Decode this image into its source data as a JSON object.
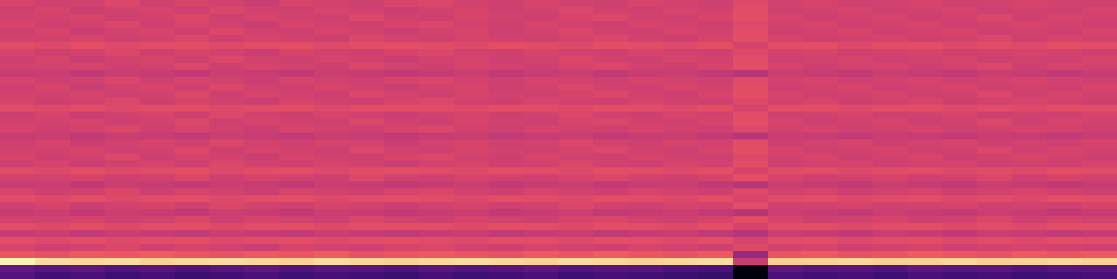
{
  "chart_data": {
    "type": "heatmap",
    "color": "magma",
    "color_range": [
      0,
      1
    ],
    "tick_labels": false,
    "cells": [
      [
        0.58,
        0.56,
        0.57,
        0.59,
        0.56,
        0.58,
        0.57,
        0.55,
        0.58,
        0.57,
        0.56,
        0.58,
        0.59,
        0.57,
        0.56,
        0.58,
        0.57,
        0.56,
        0.58,
        0.57,
        0.56,
        0.6,
        0.57,
        0.58,
        0.56,
        0.57,
        0.58,
        0.56,
        0.57,
        0.58,
        0.57,
        0.56
      ],
      [
        0.56,
        0.58,
        0.55,
        0.57,
        0.58,
        0.56,
        0.59,
        0.57,
        0.56,
        0.58,
        0.57,
        0.55,
        0.57,
        0.58,
        0.56,
        0.57,
        0.59,
        0.57,
        0.56,
        0.58,
        0.57,
        0.61,
        0.56,
        0.57,
        0.58,
        0.56,
        0.57,
        0.58,
        0.56,
        0.57,
        0.56,
        0.58
      ],
      [
        0.57,
        0.57,
        0.58,
        0.56,
        0.57,
        0.59,
        0.56,
        0.58,
        0.57,
        0.56,
        0.59,
        0.57,
        0.56,
        0.58,
        0.57,
        0.56,
        0.58,
        0.59,
        0.57,
        0.56,
        0.58,
        0.62,
        0.58,
        0.56,
        0.57,
        0.58,
        0.56,
        0.57,
        0.59,
        0.56,
        0.58,
        0.57
      ],
      [
        0.58,
        0.56,
        0.57,
        0.59,
        0.56,
        0.58,
        0.57,
        0.55,
        0.58,
        0.57,
        0.56,
        0.58,
        0.59,
        0.57,
        0.56,
        0.58,
        0.57,
        0.56,
        0.58,
        0.57,
        0.56,
        0.6,
        0.57,
        0.58,
        0.56,
        0.57,
        0.58,
        0.56,
        0.57,
        0.58,
        0.57,
        0.56
      ],
      [
        0.56,
        0.58,
        0.55,
        0.57,
        0.58,
        0.56,
        0.59,
        0.57,
        0.56,
        0.58,
        0.57,
        0.55,
        0.57,
        0.58,
        0.56,
        0.57,
        0.59,
        0.57,
        0.56,
        0.58,
        0.57,
        0.61,
        0.56,
        0.57,
        0.58,
        0.56,
        0.57,
        0.58,
        0.56,
        0.57,
        0.56,
        0.58
      ],
      [
        0.57,
        0.57,
        0.58,
        0.56,
        0.57,
        0.59,
        0.56,
        0.58,
        0.57,
        0.56,
        0.59,
        0.57,
        0.56,
        0.58,
        0.57,
        0.56,
        0.58,
        0.59,
        0.57,
        0.56,
        0.58,
        0.62,
        0.58,
        0.56,
        0.57,
        0.58,
        0.56,
        0.57,
        0.59,
        0.56,
        0.58,
        0.57
      ],
      [
        0.61,
        0.6,
        0.62,
        0.6,
        0.61,
        0.62,
        0.6,
        0.61,
        0.62,
        0.6,
        0.61,
        0.62,
        0.61,
        0.6,
        0.62,
        0.61,
        0.6,
        0.62,
        0.61,
        0.6,
        0.62,
        0.58,
        0.61,
        0.62,
        0.6,
        0.61,
        0.62,
        0.6,
        0.61,
        0.6,
        0.62,
        0.61
      ],
      [
        0.58,
        0.56,
        0.57,
        0.59,
        0.56,
        0.58,
        0.57,
        0.55,
        0.58,
        0.57,
        0.56,
        0.58,
        0.59,
        0.57,
        0.56,
        0.58,
        0.57,
        0.56,
        0.58,
        0.57,
        0.56,
        0.6,
        0.57,
        0.58,
        0.56,
        0.57,
        0.58,
        0.56,
        0.57,
        0.58,
        0.57,
        0.56
      ],
      [
        0.56,
        0.58,
        0.55,
        0.57,
        0.58,
        0.56,
        0.59,
        0.57,
        0.56,
        0.58,
        0.57,
        0.55,
        0.57,
        0.58,
        0.56,
        0.57,
        0.59,
        0.57,
        0.56,
        0.58,
        0.57,
        0.61,
        0.56,
        0.57,
        0.58,
        0.56,
        0.57,
        0.58,
        0.56,
        0.57,
        0.56,
        0.58
      ],
      [
        0.57,
        0.57,
        0.58,
        0.56,
        0.57,
        0.59,
        0.56,
        0.58,
        0.57,
        0.56,
        0.59,
        0.57,
        0.56,
        0.58,
        0.57,
        0.56,
        0.58,
        0.59,
        0.57,
        0.56,
        0.58,
        0.62,
        0.58,
        0.56,
        0.57,
        0.58,
        0.56,
        0.57,
        0.59,
        0.56,
        0.58,
        0.57
      ],
      [
        0.54,
        0.55,
        0.53,
        0.55,
        0.54,
        0.53,
        0.55,
        0.54,
        0.53,
        0.55,
        0.54,
        0.53,
        0.54,
        0.55,
        0.53,
        0.54,
        0.55,
        0.53,
        0.54,
        0.55,
        0.53,
        0.5,
        0.55,
        0.54,
        0.53,
        0.55,
        0.54,
        0.53,
        0.55,
        0.54,
        0.53,
        0.54
      ],
      [
        0.58,
        0.56,
        0.57,
        0.59,
        0.56,
        0.58,
        0.57,
        0.55,
        0.58,
        0.57,
        0.56,
        0.58,
        0.59,
        0.57,
        0.56,
        0.58,
        0.57,
        0.56,
        0.58,
        0.57,
        0.56,
        0.6,
        0.57,
        0.58,
        0.56,
        0.57,
        0.58,
        0.56,
        0.57,
        0.58,
        0.57,
        0.56
      ],
      [
        0.56,
        0.58,
        0.55,
        0.57,
        0.58,
        0.56,
        0.59,
        0.57,
        0.56,
        0.58,
        0.57,
        0.55,
        0.57,
        0.58,
        0.56,
        0.57,
        0.59,
        0.57,
        0.56,
        0.58,
        0.57,
        0.61,
        0.56,
        0.57,
        0.58,
        0.56,
        0.57,
        0.58,
        0.56,
        0.57,
        0.56,
        0.58
      ],
      [
        0.57,
        0.57,
        0.58,
        0.56,
        0.57,
        0.59,
        0.56,
        0.58,
        0.57,
        0.56,
        0.59,
        0.57,
        0.56,
        0.58,
        0.57,
        0.56,
        0.58,
        0.59,
        0.57,
        0.56,
        0.58,
        0.62,
        0.58,
        0.56,
        0.57,
        0.58,
        0.56,
        0.57,
        0.59,
        0.56,
        0.58,
        0.57
      ],
      [
        0.58,
        0.56,
        0.57,
        0.59,
        0.56,
        0.58,
        0.57,
        0.55,
        0.58,
        0.57,
        0.56,
        0.58,
        0.59,
        0.57,
        0.56,
        0.58,
        0.57,
        0.56,
        0.58,
        0.57,
        0.56,
        0.6,
        0.57,
        0.58,
        0.56,
        0.57,
        0.58,
        0.56,
        0.57,
        0.58,
        0.57,
        0.56
      ],
      [
        0.61,
        0.6,
        0.62,
        0.6,
        0.61,
        0.62,
        0.6,
        0.61,
        0.62,
        0.6,
        0.61,
        0.62,
        0.61,
        0.6,
        0.62,
        0.61,
        0.6,
        0.62,
        0.61,
        0.6,
        0.62,
        0.58,
        0.61,
        0.62,
        0.6,
        0.61,
        0.62,
        0.6,
        0.61,
        0.6,
        0.62,
        0.61
      ],
      [
        0.56,
        0.58,
        0.55,
        0.57,
        0.58,
        0.56,
        0.59,
        0.57,
        0.56,
        0.58,
        0.57,
        0.55,
        0.57,
        0.58,
        0.56,
        0.57,
        0.59,
        0.57,
        0.56,
        0.58,
        0.57,
        0.61,
        0.56,
        0.57,
        0.58,
        0.56,
        0.57,
        0.58,
        0.56,
        0.57,
        0.56,
        0.58
      ],
      [
        0.57,
        0.57,
        0.58,
        0.56,
        0.57,
        0.59,
        0.56,
        0.58,
        0.57,
        0.56,
        0.59,
        0.57,
        0.56,
        0.58,
        0.57,
        0.56,
        0.58,
        0.59,
        0.57,
        0.56,
        0.58,
        0.62,
        0.58,
        0.56,
        0.57,
        0.58,
        0.56,
        0.57,
        0.59,
        0.56,
        0.58,
        0.57
      ],
      [
        0.58,
        0.56,
        0.57,
        0.59,
        0.56,
        0.58,
        0.57,
        0.55,
        0.58,
        0.57,
        0.56,
        0.58,
        0.59,
        0.57,
        0.56,
        0.58,
        0.57,
        0.56,
        0.58,
        0.57,
        0.56,
        0.6,
        0.57,
        0.58,
        0.56,
        0.57,
        0.58,
        0.56,
        0.57,
        0.58,
        0.57,
        0.56
      ],
      [
        0.54,
        0.55,
        0.53,
        0.55,
        0.54,
        0.53,
        0.55,
        0.54,
        0.53,
        0.55,
        0.54,
        0.53,
        0.54,
        0.55,
        0.53,
        0.54,
        0.55,
        0.53,
        0.54,
        0.55,
        0.53,
        0.5,
        0.55,
        0.54,
        0.53,
        0.55,
        0.54,
        0.53,
        0.55,
        0.54,
        0.53,
        0.54
      ],
      [
        0.56,
        0.58,
        0.55,
        0.57,
        0.58,
        0.56,
        0.59,
        0.57,
        0.56,
        0.58,
        0.57,
        0.55,
        0.57,
        0.58,
        0.56,
        0.57,
        0.59,
        0.57,
        0.56,
        0.58,
        0.57,
        0.61,
        0.56,
        0.57,
        0.58,
        0.56,
        0.57,
        0.58,
        0.56,
        0.57,
        0.56,
        0.58
      ],
      [
        0.57,
        0.57,
        0.58,
        0.56,
        0.57,
        0.59,
        0.56,
        0.58,
        0.57,
        0.56,
        0.59,
        0.57,
        0.56,
        0.58,
        0.57,
        0.56,
        0.58,
        0.59,
        0.57,
        0.56,
        0.58,
        0.62,
        0.58,
        0.56,
        0.57,
        0.58,
        0.56,
        0.57,
        0.59,
        0.56,
        0.58,
        0.57
      ],
      [
        0.58,
        0.56,
        0.57,
        0.59,
        0.56,
        0.58,
        0.57,
        0.55,
        0.58,
        0.57,
        0.56,
        0.58,
        0.59,
        0.57,
        0.56,
        0.58,
        0.57,
        0.56,
        0.58,
        0.57,
        0.56,
        0.6,
        0.57,
        0.58,
        0.56,
        0.57,
        0.58,
        0.56,
        0.57,
        0.58,
        0.57,
        0.56
      ],
      [
        0.56,
        0.58,
        0.55,
        0.57,
        0.58,
        0.56,
        0.59,
        0.57,
        0.56,
        0.58,
        0.57,
        0.55,
        0.57,
        0.58,
        0.56,
        0.57,
        0.59,
        0.57,
        0.56,
        0.58,
        0.57,
        0.61,
        0.56,
        0.57,
        0.58,
        0.56,
        0.57,
        0.58,
        0.56,
        0.57,
        0.56,
        0.58
      ],
      [
        0.61,
        0.6,
        0.62,
        0.6,
        0.61,
        0.62,
        0.6,
        0.61,
        0.62,
        0.6,
        0.61,
        0.62,
        0.61,
        0.6,
        0.62,
        0.61,
        0.6,
        0.62,
        0.61,
        0.6,
        0.62,
        0.58,
        0.61,
        0.62,
        0.6,
        0.61,
        0.62,
        0.6,
        0.61,
        0.6,
        0.62,
        0.61
      ],
      [
        0.57,
        0.57,
        0.58,
        0.56,
        0.57,
        0.59,
        0.56,
        0.58,
        0.57,
        0.56,
        0.59,
        0.57,
        0.56,
        0.58,
        0.57,
        0.56,
        0.58,
        0.59,
        0.57,
        0.56,
        0.58,
        0.62,
        0.58,
        0.56,
        0.57,
        0.58,
        0.56,
        0.57,
        0.59,
        0.56,
        0.58,
        0.57
      ],
      [
        0.54,
        0.55,
        0.53,
        0.55,
        0.54,
        0.53,
        0.55,
        0.54,
        0.53,
        0.55,
        0.54,
        0.53,
        0.54,
        0.55,
        0.53,
        0.54,
        0.55,
        0.53,
        0.54,
        0.55,
        0.53,
        0.5,
        0.55,
        0.54,
        0.53,
        0.55,
        0.54,
        0.53,
        0.55,
        0.54,
        0.53,
        0.54
      ],
      [
        0.58,
        0.56,
        0.57,
        0.59,
        0.56,
        0.58,
        0.57,
        0.55,
        0.58,
        0.57,
        0.56,
        0.58,
        0.59,
        0.57,
        0.56,
        0.58,
        0.57,
        0.56,
        0.58,
        0.57,
        0.56,
        0.6,
        0.57,
        0.58,
        0.56,
        0.57,
        0.58,
        0.56,
        0.57,
        0.58,
        0.57,
        0.56
      ],
      [
        0.61,
        0.6,
        0.62,
        0.6,
        0.61,
        0.62,
        0.6,
        0.61,
        0.62,
        0.6,
        0.61,
        0.62,
        0.61,
        0.6,
        0.62,
        0.61,
        0.6,
        0.62,
        0.61,
        0.6,
        0.62,
        0.58,
        0.61,
        0.62,
        0.6,
        0.61,
        0.62,
        0.6,
        0.61,
        0.6,
        0.62,
        0.61
      ],
      [
        0.56,
        0.58,
        0.55,
        0.57,
        0.58,
        0.56,
        0.59,
        0.57,
        0.56,
        0.58,
        0.57,
        0.55,
        0.57,
        0.58,
        0.56,
        0.57,
        0.59,
        0.57,
        0.56,
        0.58,
        0.57,
        0.61,
        0.56,
        0.57,
        0.58,
        0.56,
        0.57,
        0.58,
        0.56,
        0.57,
        0.56,
        0.58
      ],
      [
        0.54,
        0.55,
        0.53,
        0.55,
        0.54,
        0.53,
        0.55,
        0.54,
        0.53,
        0.55,
        0.54,
        0.53,
        0.54,
        0.55,
        0.53,
        0.54,
        0.55,
        0.53,
        0.54,
        0.55,
        0.53,
        0.5,
        0.55,
        0.54,
        0.53,
        0.55,
        0.54,
        0.53,
        0.55,
        0.54,
        0.53,
        0.54
      ],
      [
        0.57,
        0.57,
        0.58,
        0.56,
        0.57,
        0.59,
        0.56,
        0.58,
        0.57,
        0.56,
        0.59,
        0.57,
        0.56,
        0.58,
        0.57,
        0.56,
        0.58,
        0.59,
        0.57,
        0.56,
        0.58,
        0.62,
        0.58,
        0.56,
        0.57,
        0.58,
        0.56,
        0.57,
        0.59,
        0.56,
        0.58,
        0.57
      ],
      [
        0.61,
        0.6,
        0.62,
        0.6,
        0.61,
        0.62,
        0.6,
        0.61,
        0.62,
        0.6,
        0.61,
        0.62,
        0.61,
        0.6,
        0.62,
        0.61,
        0.6,
        0.62,
        0.61,
        0.6,
        0.62,
        0.58,
        0.61,
        0.62,
        0.6,
        0.61,
        0.62,
        0.6,
        0.61,
        0.6,
        0.62,
        0.61
      ],
      [
        0.54,
        0.55,
        0.53,
        0.55,
        0.54,
        0.53,
        0.55,
        0.54,
        0.53,
        0.55,
        0.54,
        0.53,
        0.54,
        0.55,
        0.53,
        0.54,
        0.55,
        0.53,
        0.54,
        0.55,
        0.53,
        0.5,
        0.55,
        0.54,
        0.53,
        0.55,
        0.54,
        0.53,
        0.55,
        0.54,
        0.53,
        0.54
      ],
      [
        0.61,
        0.6,
        0.62,
        0.6,
        0.61,
        0.62,
        0.6,
        0.61,
        0.62,
        0.6,
        0.61,
        0.62,
        0.61,
        0.6,
        0.62,
        0.61,
        0.6,
        0.62,
        0.61,
        0.6,
        0.62,
        0.58,
        0.61,
        0.62,
        0.6,
        0.61,
        0.62,
        0.6,
        0.61,
        0.6,
        0.62,
        0.61
      ],
      [
        0.58,
        0.56,
        0.57,
        0.59,
        0.56,
        0.58,
        0.57,
        0.55,
        0.58,
        0.57,
        0.56,
        0.58,
        0.59,
        0.57,
        0.56,
        0.58,
        0.57,
        0.56,
        0.58,
        0.57,
        0.56,
        0.6,
        0.57,
        0.58,
        0.56,
        0.57,
        0.58,
        0.56,
        0.57,
        0.58,
        0.57,
        0.56
      ],
      [
        0.64,
        0.63,
        0.65,
        0.64,
        0.66,
        0.64,
        0.63,
        0.65,
        0.64,
        0.66,
        0.63,
        0.64,
        0.65,
        0.64,
        0.63,
        0.65,
        0.64,
        0.66,
        0.64,
        0.63,
        0.65,
        0.42,
        0.64,
        0.65,
        0.63,
        0.64,
        0.66,
        0.64,
        0.63,
        0.65,
        0.64,
        0.65
      ],
      [
        0.98,
        0.93,
        0.92,
        0.93,
        0.91,
        0.92,
        0.93,
        0.92,
        0.91,
        0.93,
        0.92,
        0.91,
        0.92,
        0.93,
        0.92,
        0.91,
        0.93,
        0.92,
        0.91,
        0.92,
        0.93,
        0.55,
        0.9,
        0.91,
        0.92,
        0.9,
        0.91,
        0.92,
        0.9,
        0.91,
        0.92,
        0.91
      ],
      [
        0.3,
        0.27,
        0.29,
        0.26,
        0.28,
        0.25,
        0.27,
        0.29,
        0.26,
        0.28,
        0.27,
        0.25,
        0.28,
        0.26,
        0.27,
        0.29,
        0.26,
        0.28,
        0.27,
        0.25,
        0.24,
        0.03,
        0.29,
        0.27,
        0.28,
        0.26,
        0.29,
        0.27,
        0.28,
        0.26,
        0.27,
        0.28
      ],
      [
        0.26,
        0.22,
        0.24,
        0.21,
        0.23,
        0.2,
        0.22,
        0.24,
        0.21,
        0.23,
        0.22,
        0.2,
        0.23,
        0.21,
        0.22,
        0.24,
        0.21,
        0.23,
        0.22,
        0.2,
        0.19,
        0.02,
        0.24,
        0.22,
        0.23,
        0.21,
        0.24,
        0.22,
        0.23,
        0.21,
        0.22,
        0.23
      ]
    ]
  }
}
